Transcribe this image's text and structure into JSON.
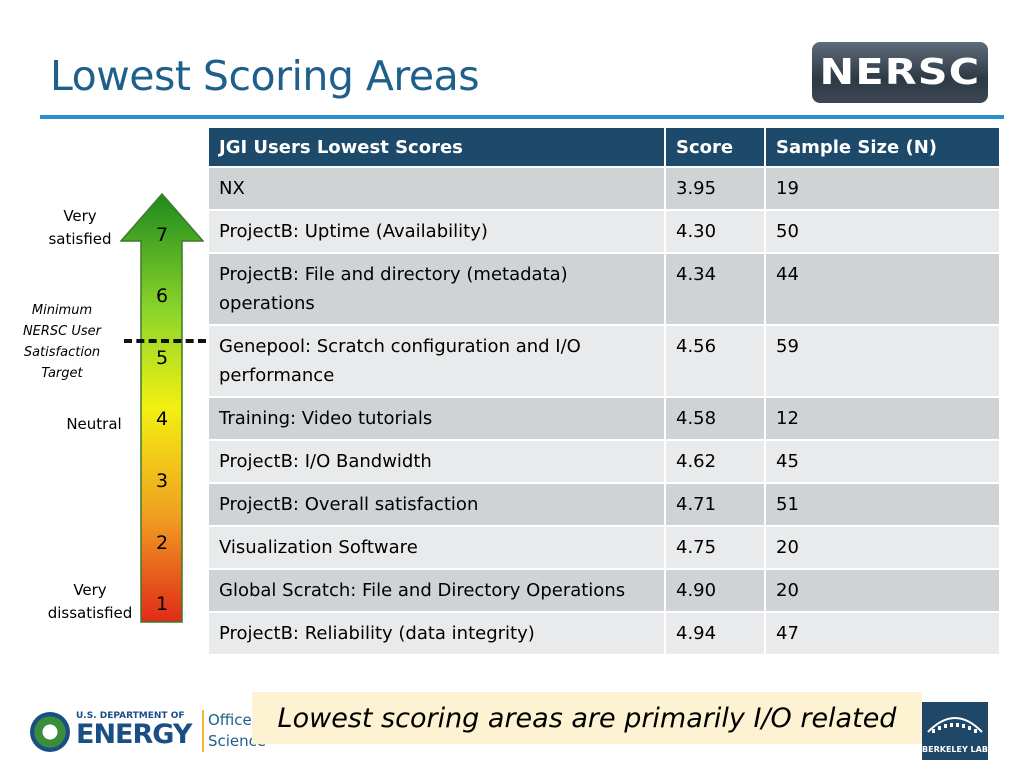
{
  "slide": {
    "title": "Lowest Scoring Areas",
    "callout": "Lowest scoring areas are primarily I/O related"
  },
  "logos": {
    "nersc": "NERSC",
    "doe_line1": "U.S. DEPARTMENT OF",
    "doe_line2": "ENERGY",
    "doe_office_1": "Office of",
    "doe_office_2": "Science",
    "berkeley": "BERKELEY LAB"
  },
  "scale": {
    "numbers": [
      "7",
      "6",
      "5",
      "4",
      "3",
      "2",
      "1"
    ],
    "very_satisfied": "Very satisfied",
    "neutral": "Neutral",
    "very_dissatisfied": "Very dissatisfied",
    "minimum_target": "Minimum NERSC User Satisfaction Target",
    "gradient_colors": [
      "#1e8a1e",
      "#8fd62a",
      "#f3ef12",
      "#f0a020",
      "#e02a1a"
    ]
  },
  "table": {
    "headers": [
      "JGI Users Lowest Scores",
      "Score",
      "Sample Size (N)"
    ],
    "rows": [
      [
        "NX",
        "3.95",
        "19"
      ],
      [
        "ProjectB: Uptime (Availability)",
        "4.30",
        "50"
      ],
      [
        "ProjectB: File and directory (metadata) operations",
        "4.34",
        "44"
      ],
      [
        "Genepool: Scratch configuration and I/O performance",
        "4.56",
        "59"
      ],
      [
        "Training: Video tutorials",
        "4.58",
        "12"
      ],
      [
        "ProjectB: I/O Bandwidth",
        "4.62",
        "45"
      ],
      [
        "ProjectB: Overall satisfaction",
        "4.71",
        "51"
      ],
      [
        "Visualization Software",
        "4.75",
        "20"
      ],
      [
        "Global Scratch: File and Directory Operations",
        "4.90",
        "20"
      ],
      [
        "ProjectB: Reliability (data integrity)",
        "4.94",
        "47"
      ]
    ]
  },
  "colors": {
    "title": "#1f5f8b",
    "header_bg": "#1d4a6a",
    "row_dark": "#d0d3d6",
    "row_light": "#e9eaeb",
    "callout_bg": "#fdf3d2"
  }
}
